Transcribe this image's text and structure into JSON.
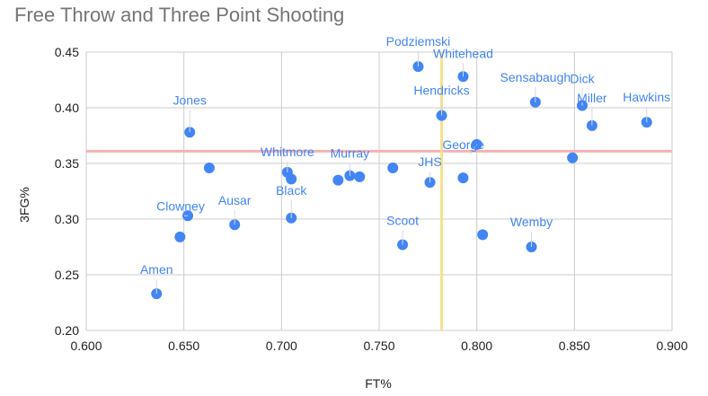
{
  "chart_data": {
    "type": "scatter",
    "title": "Free Throw and Three Point Shooting",
    "xlabel": "FT%",
    "ylabel": "3FG%",
    "xlim": [
      0.6,
      0.9
    ],
    "ylim": [
      0.2,
      0.45
    ],
    "x_ticks": [
      "0.600",
      "0.650",
      "0.700",
      "0.750",
      "0.800",
      "0.850",
      "0.900"
    ],
    "y_ticks": [
      "0.20",
      "0.25",
      "0.30",
      "0.35",
      "0.40",
      "0.45"
    ],
    "grid": true,
    "point_color": "#4285f4",
    "reference_lines": [
      {
        "orientation": "horizontal",
        "value": 0.361,
        "color": "#f4b3b3"
      },
      {
        "orientation": "vertical",
        "value": 0.782,
        "color": "#f7e08e"
      }
    ],
    "points": [
      {
        "x": 0.636,
        "y": 0.233,
        "label": "Amen"
      },
      {
        "x": 0.648,
        "y": 0.284,
        "label": ""
      },
      {
        "x": 0.652,
        "y": 0.303,
        "label": "Clowney"
      },
      {
        "x": 0.653,
        "y": 0.378,
        "label": "Jones"
      },
      {
        "x": 0.663,
        "y": 0.346,
        "label": ""
      },
      {
        "x": 0.676,
        "y": 0.295,
        "label": "Ausar"
      },
      {
        "x": 0.703,
        "y": 0.342,
        "label": "Whitmore"
      },
      {
        "x": 0.705,
        "y": 0.336,
        "label": ""
      },
      {
        "x": 0.705,
        "y": 0.301,
        "label": "Black"
      },
      {
        "x": 0.729,
        "y": 0.335,
        "label": ""
      },
      {
        "x": 0.735,
        "y": 0.339,
        "label": "Murray"
      },
      {
        "x": 0.74,
        "y": 0.338,
        "label": ""
      },
      {
        "x": 0.757,
        "y": 0.346,
        "label": ""
      },
      {
        "x": 0.762,
        "y": 0.277,
        "label": "Scoot"
      },
      {
        "x": 0.77,
        "y": 0.437,
        "label": "Podziemski"
      },
      {
        "x": 0.776,
        "y": 0.333,
        "label": "JHS"
      },
      {
        "x": 0.782,
        "y": 0.393,
        "label": "Hendricks"
      },
      {
        "x": 0.793,
        "y": 0.428,
        "label": "Whitehead"
      },
      {
        "x": 0.793,
        "y": 0.337,
        "label": ""
      },
      {
        "x": 0.8,
        "y": 0.367,
        "label": "George"
      },
      {
        "x": 0.803,
        "y": 0.286,
        "label": ""
      },
      {
        "x": 0.828,
        "y": 0.275,
        "label": "Wemby"
      },
      {
        "x": 0.83,
        "y": 0.405,
        "label": "Sensabaugh"
      },
      {
        "x": 0.849,
        "y": 0.355,
        "label": ""
      },
      {
        "x": 0.854,
        "y": 0.402,
        "label": "Dick"
      },
      {
        "x": 0.859,
        "y": 0.384,
        "label": "Miller"
      },
      {
        "x": 0.887,
        "y": 0.387,
        "label": "Hawkins"
      }
    ]
  }
}
